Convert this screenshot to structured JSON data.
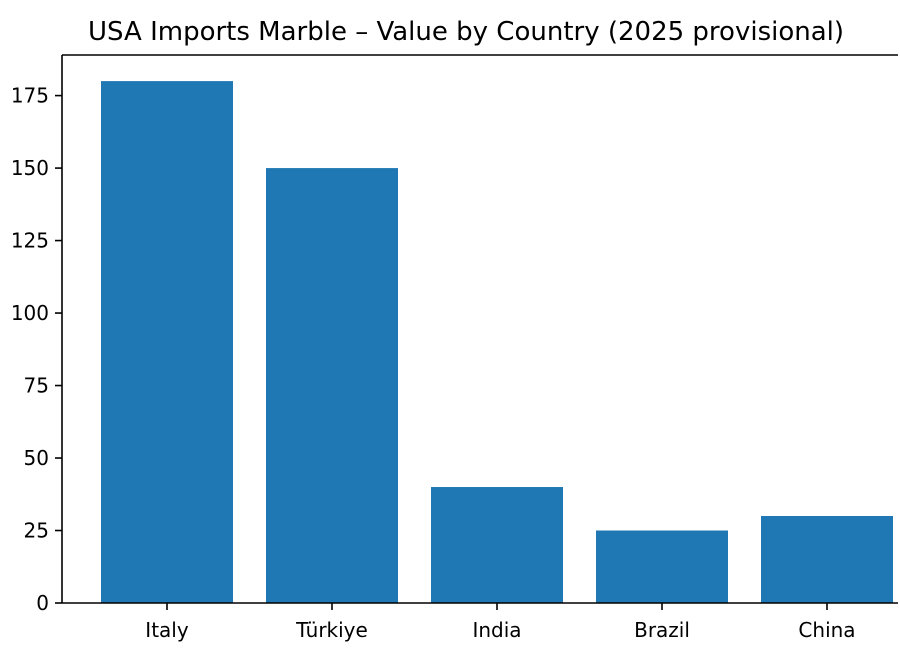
{
  "chart_data": {
    "type": "bar",
    "title": "USA Imports Marble – Value by Country (2025 provisional)",
    "xlabel": "",
    "ylabel": "",
    "categories": [
      "Italy",
      "Türkiye",
      "India",
      "Brazil",
      "China"
    ],
    "values": [
      180,
      150,
      40,
      25,
      30
    ],
    "ylim": [
      0,
      189
    ],
    "yticks": [
      0,
      25,
      50,
      75,
      100,
      125,
      150,
      175
    ],
    "grid": false,
    "bar_color": "#1f77b4"
  }
}
